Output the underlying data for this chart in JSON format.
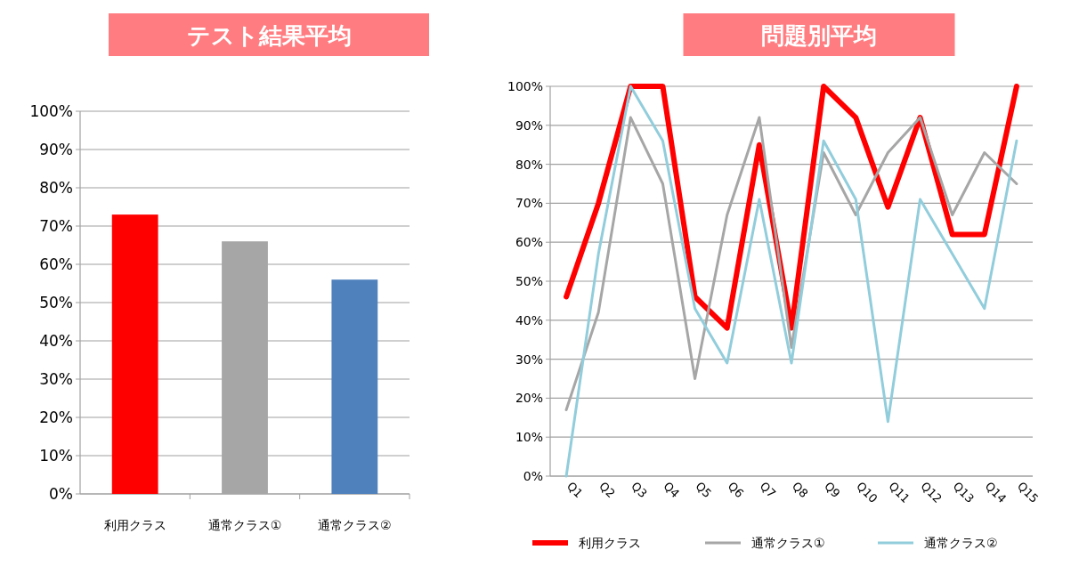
{
  "chart_data": [
    {
      "type": "bar",
      "title": "テスト結果平均",
      "categories": [
        "利用クラス",
        "通常クラス①",
        "通常クラス②"
      ],
      "values": [
        73,
        66,
        56
      ],
      "colors": [
        "#ff0000",
        "#a6a6a6",
        "#4f81bd"
      ],
      "ylim": [
        0,
        100
      ],
      "yticks": [
        {
          "value": 0,
          "label": "0%"
        },
        {
          "value": 10,
          "label": "10%"
        },
        {
          "value": 20,
          "label": "20%"
        },
        {
          "value": 30,
          "label": "30%"
        },
        {
          "value": 40,
          "label": "40%"
        },
        {
          "value": 50,
          "label": "50%"
        },
        {
          "value": 60,
          "label": "60%"
        },
        {
          "value": 70,
          "label": "70%"
        },
        {
          "value": 80,
          "label": "80%"
        },
        {
          "value": 90,
          "label": "90%"
        },
        {
          "value": 100,
          "label": "100%"
        }
      ],
      "grid": "y"
    },
    {
      "type": "line",
      "title": "問題別平均",
      "categories": [
        "Q1",
        "Q2",
        "Q3",
        "Q4",
        "Q5",
        "Q6",
        "Q7",
        "Q8",
        "Q9",
        "Q10",
        "Q11",
        "Q12",
        "Q13",
        "Q14",
        "Q15"
      ],
      "series": [
        {
          "name": "利用クラス",
          "color": "#ff0000",
          "values": [
            46,
            70,
            100,
            100,
            46,
            38,
            85,
            38,
            100,
            92,
            69,
            92,
            62,
            62,
            100
          ]
        },
        {
          "name": "通常クラス①",
          "color": "#a6a6a6",
          "values": [
            17,
            42,
            92,
            75,
            25,
            67,
            92,
            33,
            83,
            67,
            83,
            92,
            67,
            83,
            75
          ]
        },
        {
          "name": "通常クラス②",
          "color": "#92cddc",
          "values": [
            0,
            57,
            100,
            86,
            43,
            29,
            71,
            29,
            86,
            71,
            14,
            71,
            57,
            43,
            86
          ]
        }
      ],
      "ylim": [
        0,
        100
      ],
      "yticks": [
        {
          "value": 0,
          "label": "0%"
        },
        {
          "value": 10,
          "label": "10%"
        },
        {
          "value": 20,
          "label": "20%"
        },
        {
          "value": 30,
          "label": "30%"
        },
        {
          "value": 40,
          "label": "40%"
        },
        {
          "value": 50,
          "label": "50%"
        },
        {
          "value": 60,
          "label": "60%"
        },
        {
          "value": 70,
          "label": "70%"
        },
        {
          "value": 80,
          "label": "80%"
        },
        {
          "value": 90,
          "label": "90%"
        },
        {
          "value": 100,
          "label": "100%"
        }
      ],
      "grid": "y",
      "legend": "bottom"
    }
  ]
}
